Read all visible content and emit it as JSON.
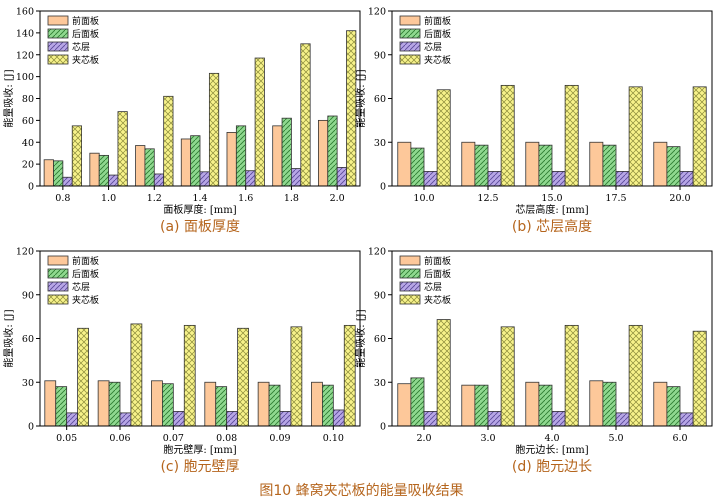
{
  "figure_caption": "图10 蜂窝夹芯板的能量吸收结果",
  "legend_labels": [
    "前面板",
    "后面板",
    "芯层",
    "夹芯板"
  ],
  "colors": {
    "front": "#fdc89a",
    "back": "#8fd88f",
    "core": "#b7a6e6",
    "sandwich": "#f7f28a",
    "caption": "#b5651d"
  },
  "chart_data": [
    {
      "type": "bar",
      "caption": "(a) 面板厚度",
      "xlabel": "面板厚度: [mm]",
      "ylabel": "能量吸收: [J]",
      "ylim": [
        0,
        160
      ],
      "yticks": [
        0,
        20,
        40,
        60,
        80,
        100,
        120,
        140,
        160
      ],
      "categories": [
        "0.8",
        "1.0",
        "1.2",
        "1.4",
        "1.6",
        "1.8",
        "2.0"
      ],
      "legend_position": "top-left",
      "series": [
        {
          "name": "前面板",
          "values": [
            24,
            30,
            37,
            43,
            49,
            55,
            60
          ]
        },
        {
          "name": "后面板",
          "values": [
            23,
            28,
            34,
            46,
            55,
            62,
            64
          ]
        },
        {
          "name": "芯层",
          "values": [
            8,
            10,
            11,
            13,
            14,
            16,
            17
          ]
        },
        {
          "name": "夹芯板",
          "values": [
            55,
            68,
            82,
            103,
            117,
            130,
            142
          ]
        }
      ]
    },
    {
      "type": "bar",
      "caption": "(b) 芯层高度",
      "xlabel": "芯层高度: [mm]",
      "ylabel": "能量吸收: [J]",
      "ylim": [
        0,
        120
      ],
      "yticks": [
        0,
        30,
        60,
        90,
        120
      ],
      "categories": [
        "10.0",
        "12.5",
        "15.0",
        "17.5",
        "20.0"
      ],
      "legend_position": "top-left",
      "series": [
        {
          "name": "前面板",
          "values": [
            30,
            30,
            30,
            30,
            30
          ]
        },
        {
          "name": "后面板",
          "values": [
            26,
            28,
            28,
            28,
            27
          ]
        },
        {
          "name": "芯层",
          "values": [
            10,
            10,
            10,
            10,
            10
          ]
        },
        {
          "name": "夹芯板",
          "values": [
            66,
            69,
            69,
            68,
            68
          ]
        }
      ]
    },
    {
      "type": "bar",
      "caption": "(c) 胞元壁厚",
      "xlabel": "胞元壁厚: [mm]",
      "ylabel": "能量吸收: [J]",
      "ylim": [
        0,
        120
      ],
      "yticks": [
        0,
        30,
        60,
        90,
        120
      ],
      "categories": [
        "0.05",
        "0.06",
        "0.07",
        "0.08",
        "0.09",
        "0.10"
      ],
      "legend_position": "top-left",
      "series": [
        {
          "name": "前面板",
          "values": [
            31,
            31,
            31,
            30,
            30,
            30
          ]
        },
        {
          "name": "后面板",
          "values": [
            27,
            30,
            29,
            27,
            28,
            28
          ]
        },
        {
          "name": "芯层",
          "values": [
            9,
            9,
            10,
            10,
            10,
            11
          ]
        },
        {
          "name": "夹芯板",
          "values": [
            67,
            70,
            69,
            67,
            68,
            69
          ]
        }
      ]
    },
    {
      "type": "bar",
      "caption": "(d) 胞元边长",
      "xlabel": "胞元边长: [mm]",
      "ylabel": "能量吸收: [J]",
      "ylim": [
        0,
        120
      ],
      "yticks": [
        0,
        30,
        60,
        90,
        120
      ],
      "categories": [
        "2.0",
        "3.0",
        "4.0",
        "5.0",
        "6.0"
      ],
      "legend_position": "top-left",
      "series": [
        {
          "name": "前面板",
          "values": [
            29,
            28,
            30,
            31,
            30
          ]
        },
        {
          "name": "后面板",
          "values": [
            33,
            28,
            28,
            30,
            27
          ]
        },
        {
          "name": "芯层",
          "values": [
            10,
            10,
            10,
            9,
            9
          ]
        },
        {
          "name": "夹芯板",
          "values": [
            73,
            68,
            69,
            69,
            65
          ]
        }
      ]
    }
  ]
}
